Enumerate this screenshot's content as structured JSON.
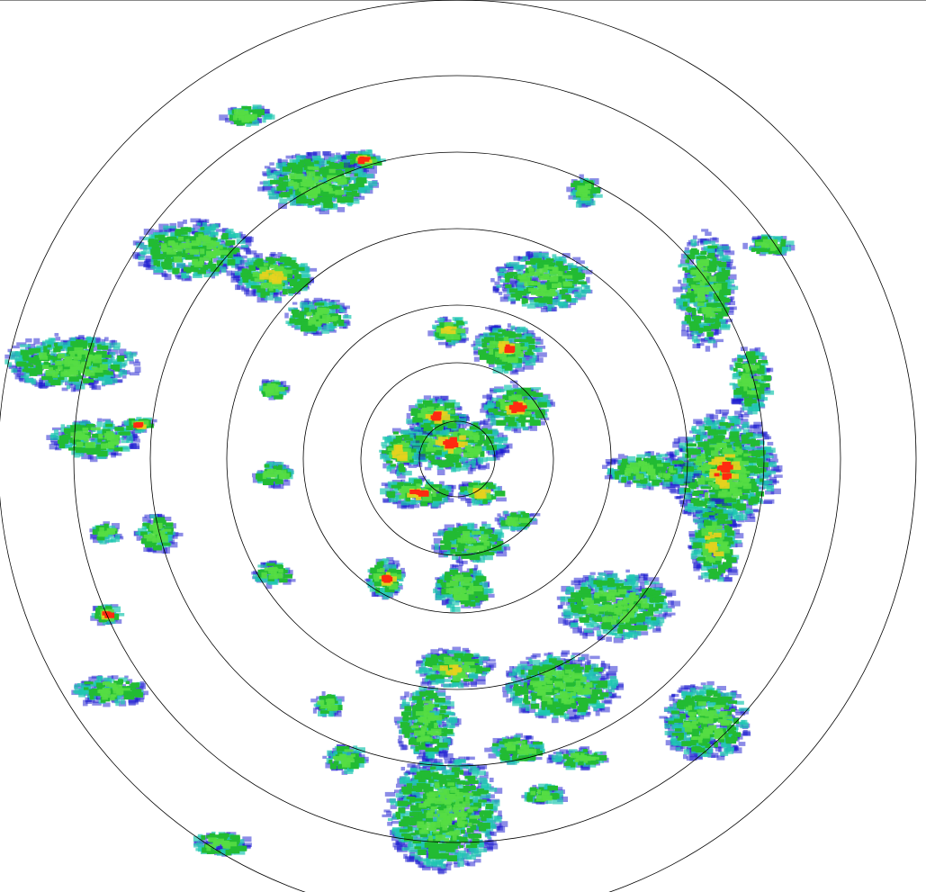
{
  "radar": {
    "ring_count": 7,
    "ring_color": "#000000",
    "palette": {
      "weak": "#1a1ad0",
      "light": "#20c8b0",
      "moderate": "#22bb33",
      "moderate_high": "#55dd44",
      "strong": "#e6d21e",
      "very_strong": "#ff2a10"
    }
  }
}
